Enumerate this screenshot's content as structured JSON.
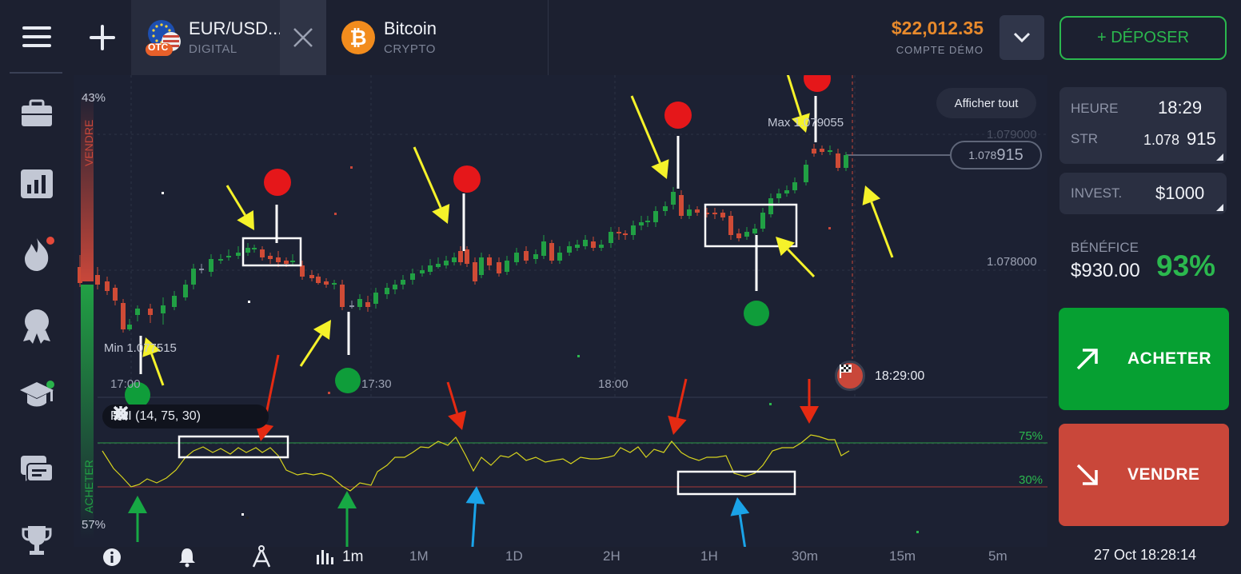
{
  "tabs": [
    {
      "title": "EUR/USD...",
      "subtitle": "DIGITAL",
      "badge": "OTC"
    },
    {
      "title": "Bitcoin",
      "subtitle": "CRYPTO"
    }
  ],
  "account": {
    "balance": "$22,012.35",
    "mode": "COMPTE DÉMO"
  },
  "deposit_label": "+ DÉPOSER",
  "time_card": {
    "time_label": "HEURE",
    "time_value": "18:29",
    "str_label": "STR",
    "str_small": "1.078",
    "str_big": "915"
  },
  "invest": {
    "label": "INVEST.",
    "value": "$1000"
  },
  "profit": {
    "label": "BÉNÉFICE",
    "amount": "$930.00",
    "percent": "93%"
  },
  "buy_label": "ACHETER",
  "sell_label": "VENDRE",
  "datetime": "27 Oct 18:28:14",
  "chart": {
    "show_all": "Afficher tout",
    "max_label": "Max 1.079055",
    "min_label": "Min 1.077515",
    "price_small": "1.078",
    "price_big": "915",
    "y_ticks": [
      "1.079000",
      "1.078000"
    ],
    "x_ticks": [
      "17:00",
      "17:30",
      "18:00"
    ],
    "expiry": "18:29:00",
    "sentiment": {
      "sell_label": "VENDRE",
      "buy_label": "ACHETER",
      "sell_pct": "43%",
      "buy_pct": "57%",
      "sell_fraction": 0.43
    },
    "rsi": {
      "label": "RSI (14, 75, 30)",
      "upper": "75%",
      "lower": "30%"
    }
  },
  "timeframes": [
    "1m",
    "1M",
    "1D",
    "2H",
    "1H",
    "30m",
    "15m",
    "5m"
  ],
  "timeframe_selected": "1m",
  "colors": {
    "up": "#21a044",
    "down": "#cf4b36",
    "accent": "#2bb84e",
    "balance": "#e88a2c",
    "buy": "#06a032",
    "sell": "#c9473a"
  }
}
